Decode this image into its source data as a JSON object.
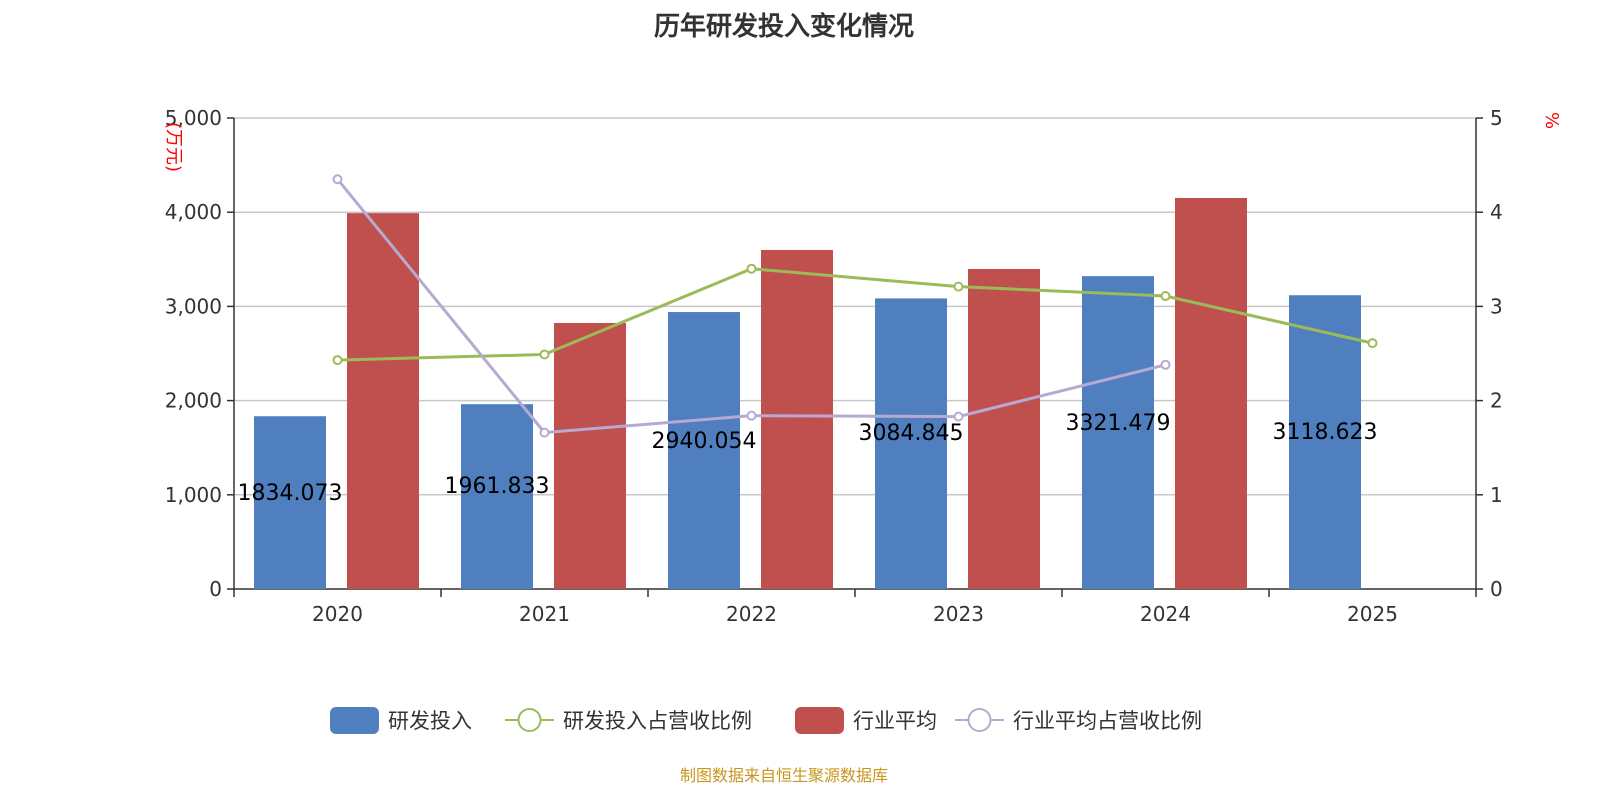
{
  "chart_data": {
    "type": "bar",
    "title": "历年研发投入变化情况",
    "categories": [
      "2020",
      "2021",
      "2022",
      "2023",
      "2024",
      "2025"
    ],
    "y_left": {
      "label": "(万元)",
      "range": [
        0,
        5000
      ],
      "ticks": [
        "0",
        "1,000",
        "2,000",
        "3,000",
        "4,000",
        "5,000"
      ],
      "label_color": "#ff0000"
    },
    "y_right": {
      "label": "%",
      "range": [
        0,
        5
      ],
      "ticks": [
        "0",
        "1",
        "2",
        "3",
        "4",
        "5"
      ],
      "label_color": "#ff0000"
    },
    "grid": true,
    "legend_position": "bottom",
    "series": [
      {
        "name": "研发投入",
        "type": "bar",
        "axis": "left",
        "color": "#4f7fbe",
        "values": [
          1834.073,
          1961.833,
          2940.054,
          3084.845,
          3321.479,
          3118.623
        ],
        "labels": [
          "1834.073",
          "1961.833",
          "2940.054",
          "3084.845",
          "3321.479",
          "3118.623"
        ]
      },
      {
        "name": "研发投入占营收比例",
        "type": "line",
        "axis": "right",
        "color": "#9bbb59",
        "values": [
          2.43,
          2.49,
          3.4,
          3.21,
          3.11,
          2.61
        ]
      },
      {
        "name": "行业平均",
        "type": "bar",
        "axis": "left",
        "color": "#c0504d",
        "values": [
          3990,
          2824,
          3599,
          3397,
          4151,
          null
        ]
      },
      {
        "name": "行业平均占营收比例",
        "type": "line",
        "axis": "right",
        "color": "#b7a9d2",
        "values": [
          4.35,
          1.66,
          1.84,
          1.83,
          2.38,
          null
        ]
      }
    ]
  },
  "source": "制图数据来自恒生聚源数据库"
}
